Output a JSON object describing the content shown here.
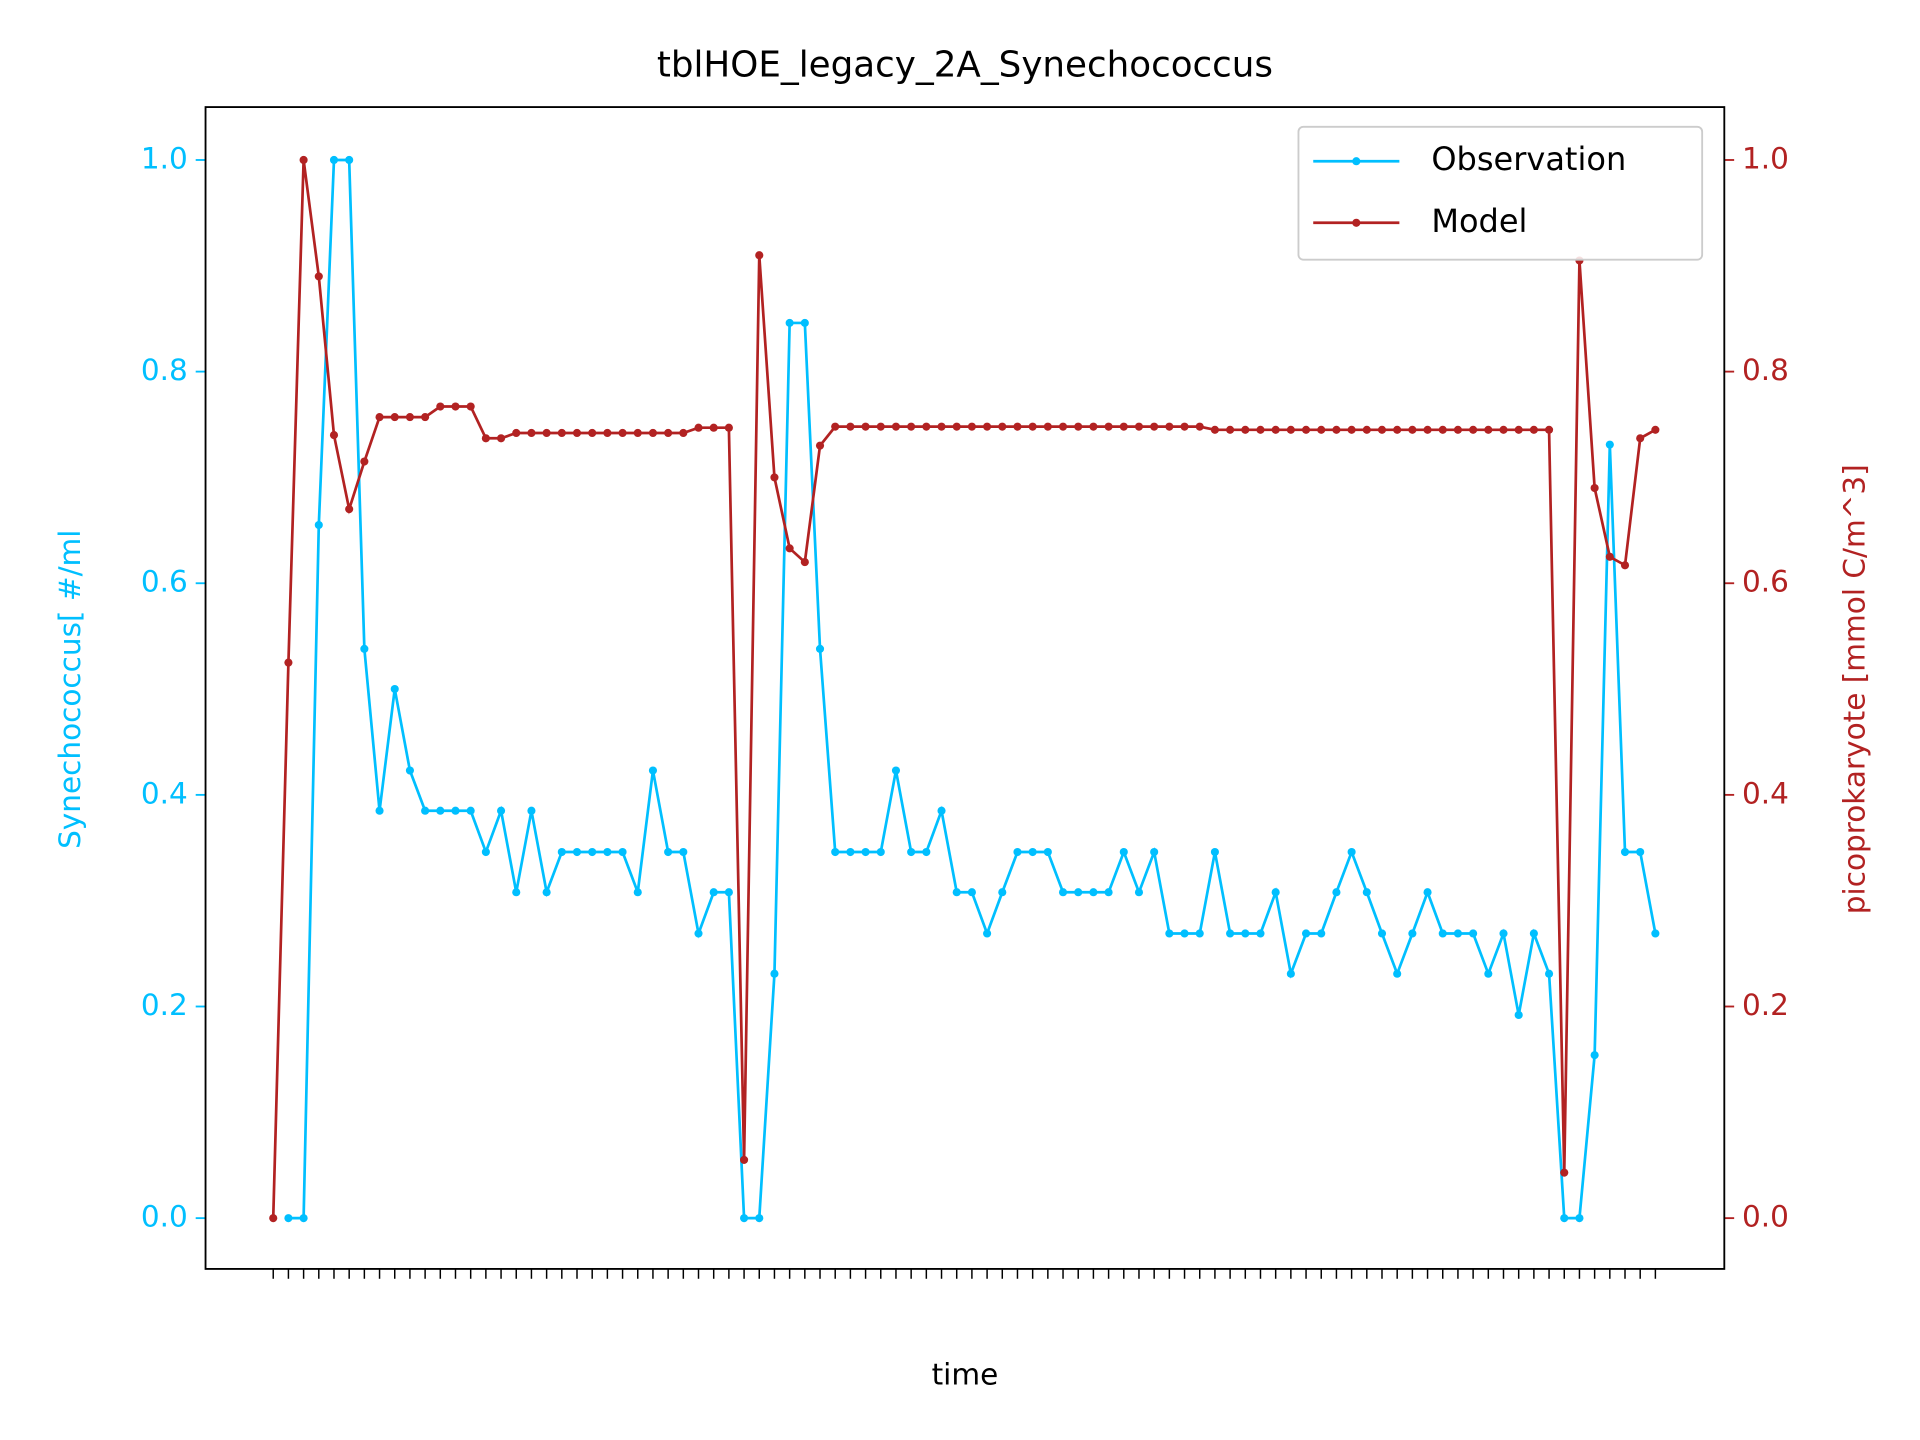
{
  "chart_data": {
    "type": "line",
    "title": "tblHOE_legacy_2A_Synechococcus",
    "x_label": "time",
    "y_label": "Synechococcus[ #/ml",
    "y2_label": "picoprokaryote [mmol C/m^3]",
    "categories": [
      null,
      null,
      null,
      null,
      null,
      null,
      null,
      null,
      null,
      null,
      null,
      null,
      null,
      null,
      null,
      null,
      null,
      null,
      null,
      null,
      null,
      null,
      null,
      null,
      null,
      null,
      null,
      null,
      null,
      null,
      null,
      null,
      null,
      null,
      null,
      null,
      null,
      null,
      null,
      null,
      null,
      null,
      null,
      null,
      null,
      null,
      null,
      null,
      null,
      null,
      null,
      null,
      null,
      null,
      null,
      null,
      null,
      null,
      null,
      null,
      null,
      null,
      null,
      null,
      null,
      null,
      null,
      null,
      null,
      null,
      null,
      null,
      null,
      null,
      null,
      null,
      null,
      null,
      null,
      null,
      null,
      null,
      null,
      null,
      null,
      null,
      null,
      null,
      null,
      null,
      null,
      null
    ],
    "series": [
      {
        "name": "Observation",
        "color": "#00bfff",
        "axis": "y",
        "values": [
          null,
          0,
          0,
          0.655,
          1.0,
          1.0,
          0.538,
          0.385,
          0.5,
          0.423,
          0.385,
          0.385,
          0.385,
          0.385,
          0.346,
          0.385,
          0.308,
          0.385,
          0.308,
          0.346,
          0.346,
          0.346,
          0.346,
          0.346,
          0.308,
          0.423,
          0.346,
          0.346,
          0.269,
          0.308,
          0.308,
          0,
          0,
          0.231,
          0.846,
          0.846,
          0.538,
          0.346,
          0.346,
          0.346,
          0.346,
          0.423,
          0.346,
          0.346,
          0.385,
          0.308,
          0.308,
          0.269,
          0.308,
          0.346,
          0.346,
          0.346,
          0.308,
          0.308,
          0.308,
          0.308,
          0.346,
          0.308,
          0.346,
          0.269,
          0.269,
          0.269,
          0.346,
          0.269,
          0.269,
          0.269,
          0.308,
          0.231,
          0.269,
          0.269,
          0.308,
          0.346,
          0.308,
          0.269,
          0.231,
          0.269,
          0.308,
          0.269,
          0.269,
          0.269,
          0.231,
          0.269,
          0.192,
          0.269,
          0.231,
          0,
          0,
          0.154,
          0.731,
          0.346,
          0.346,
          0.269
        ]
      },
      {
        "name": "Model",
        "color": "#b22222",
        "axis": "y2",
        "values": [
          0,
          0.525,
          1.0,
          0.89,
          0.74,
          0.67,
          0.715,
          0.757,
          0.757,
          0.757,
          0.757,
          0.767,
          0.767,
          0.767,
          0.737,
          0.737,
          0.742,
          0.742,
          0.742,
          0.742,
          0.742,
          0.742,
          0.742,
          0.742,
          0.742,
          0.742,
          0.742,
          0.742,
          0.747,
          0.747,
          0.747,
          0.055,
          0.91,
          0.7,
          0.633,
          0.62,
          0.73,
          0.748,
          0.748,
          0.748,
          0.748,
          0.748,
          0.748,
          0.748,
          0.748,
          0.748,
          0.748,
          0.748,
          0.748,
          0.748,
          0.748,
          0.748,
          0.748,
          0.748,
          0.748,
          0.748,
          0.748,
          0.748,
          0.748,
          0.748,
          0.748,
          0.748,
          0.745,
          0.745,
          0.745,
          0.745,
          0.745,
          0.745,
          0.745,
          0.745,
          0.745,
          0.745,
          0.745,
          0.745,
          0.745,
          0.745,
          0.745,
          0.745,
          0.745,
          0.745,
          0.745,
          0.745,
          0.745,
          0.745,
          0.745,
          0.043,
          0.905,
          0.69,
          0.625,
          0.617,
          0.737,
          0.745
        ]
      }
    ],
    "ylim": [
      -0.048,
      1.05
    ],
    "yticks": [
      {
        "value": 0,
        "label": "0.0"
      },
      0.2,
      0.4,
      0.6,
      0.8,
      {
        "value": 1,
        "label": "1.0"
      }
    ],
    "y2lim": [
      -0.048,
      1.05
    ],
    "y2ticks": [
      {
        "value": 0,
        "label": "0.0"
      },
      0.2,
      0.4,
      0.6,
      0.8,
      {
        "value": 1,
        "label": "1.0"
      }
    ],
    "legend": "upper right"
  }
}
